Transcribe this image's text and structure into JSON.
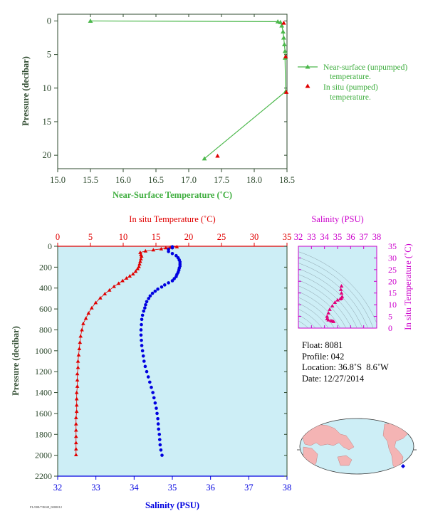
{
  "top_chart": {
    "xlabel": "Near-Surface Temperature (˚C)",
    "ylabel": "Pressure (decibar)",
    "x_ticks": [
      "15.0",
      "15.5",
      "16.0",
      "16.5",
      "17.0",
      "17.5",
      "18.0",
      "18.5"
    ],
    "y_ticks": [
      "0",
      "5",
      "10",
      "15",
      "20"
    ],
    "legend": {
      "near_surface_line1": "Near-surface (unpumped)",
      "near_surface_line2": "temperature.",
      "in_situ_line1": "In situ (pumped)",
      "in_situ_line2": "temperature."
    }
  },
  "bottom_chart": {
    "top_axis_label": "In situ Temperature (˚C)",
    "bottom_axis_label": "Salinity (PSU)",
    "ylabel": "Pressure (decibar)",
    "temp_ticks": [
      "0",
      "5",
      "10",
      "15",
      "20",
      "25",
      "30",
      "35"
    ],
    "sal_ticks": [
      "32",
      "33",
      "34",
      "35",
      "36",
      "37",
      "38"
    ],
    "y_ticks": [
      "0",
      "200",
      "400",
      "600",
      "800",
      "1000",
      "1200",
      "1400",
      "1600",
      "1800",
      "2000",
      "2200"
    ],
    "footer_code": "FL/008/7/8048_0000012"
  },
  "ts_chart": {
    "title": "Salinity (PSU)",
    "x_ticks": [
      "32",
      "33",
      "34",
      "35",
      "36",
      "37",
      "38"
    ],
    "y_ticks": [
      "0",
      "5",
      "10",
      "15",
      "20",
      "25",
      "30",
      "35"
    ],
    "ylabel": "In situ Temperature (˚C)"
  },
  "info": {
    "float_label": "Float:",
    "float_value": "8081",
    "profile_label": "Profile:",
    "profile_value": "042",
    "location_label": "Location:",
    "location_value": "36.8˚S  8.6˚W",
    "date_label": "Date:",
    "date_value": "12/27/2014"
  },
  "colors": {
    "near_surface": "#4cb84c",
    "in_situ_red": "#e00000",
    "salinity_blue": "#0000e0",
    "ts_magenta": "#e0007a",
    "plot_bg": "#cdeef6",
    "axis_green": "#2e4a2e",
    "axis_magenta": "#cc00cc",
    "land": "#f4b4b4"
  },
  "chart_data": [
    {
      "type": "line",
      "title": "",
      "xlabel": "Near-Surface Temperature (˚C)",
      "ylabel": "Pressure (decibar)",
      "xlim": [
        15.0,
        18.5
      ],
      "ylim": [
        22,
        -1
      ],
      "series": [
        {
          "name": "Near-surface (unpumped) temperature.",
          "points": [
            [
              15.5,
              0.0
            ],
            [
              18.36,
              0.1
            ],
            [
              18.4,
              0.2
            ],
            [
              18.42,
              0.7
            ],
            [
              18.44,
              1.6
            ],
            [
              18.45,
              2.5
            ],
            [
              18.46,
              3.5
            ],
            [
              18.47,
              4.5
            ],
            [
              18.47,
              5.5
            ],
            [
              18.48,
              10.5
            ],
            [
              17.24,
              20.5
            ]
          ]
        },
        {
          "name": "In situ (pumped) temperature.",
          "points": [
            [
              18.45,
              0.3
            ],
            [
              18.48,
              5.3
            ],
            [
              18.49,
              10.6
            ],
            [
              17.44,
              20.1
            ]
          ]
        }
      ]
    },
    {
      "type": "line",
      "xlabel": "Salinity (PSU)",
      "x2label": "In situ Temperature (˚C)",
      "ylabel": "Pressure (decibar)",
      "ylim": [
        2200,
        0
      ],
      "temperature_xlim": [
        0,
        35
      ],
      "salinity_xlim": [
        32,
        38
      ],
      "series": [
        {
          "name": "In situ Temperature (˚C)",
          "axis": "temperature",
          "points": [
            [
              18.2,
              5
            ],
            [
              17.2,
              10
            ],
            [
              16.5,
              15
            ],
            [
              15.8,
              25
            ],
            [
              14.6,
              35
            ],
            [
              13.4,
              45
            ],
            [
              12.6,
              60
            ],
            [
              12.7,
              80
            ],
            [
              12.8,
              95
            ],
            [
              12.7,
              120
            ],
            [
              12.6,
              145
            ],
            [
              12.5,
              170
            ],
            [
              12.4,
              195
            ],
            [
              12.2,
              215
            ],
            [
              11.9,
              240
            ],
            [
              11.5,
              265
            ],
            [
              11.0,
              285
            ],
            [
              10.5,
              305
            ],
            [
              9.9,
              330
            ],
            [
              9.3,
              355
            ],
            [
              8.6,
              385
            ],
            [
              7.9,
              420
            ],
            [
              7.2,
              455
            ],
            [
              6.5,
              495
            ],
            [
              5.8,
              540
            ],
            [
              5.2,
              590
            ],
            [
              4.7,
              640
            ],
            [
              4.3,
              690
            ],
            [
              3.9,
              740
            ],
            [
              3.7,
              800
            ],
            [
              3.5,
              860
            ],
            [
              3.4,
              920
            ],
            [
              3.3,
              980
            ],
            [
              3.2,
              1040
            ],
            [
              3.1,
              1100
            ],
            [
              3.1,
              1160
            ],
            [
              3.0,
              1220
            ],
            [
              3.0,
              1280
            ],
            [
              3.0,
              1340
            ],
            [
              2.9,
              1400
            ],
            [
              2.9,
              1460
            ],
            [
              2.9,
              1520
            ],
            [
              2.9,
              1580
            ],
            [
              2.8,
              1640
            ],
            [
              2.8,
              1700
            ],
            [
              2.8,
              1760
            ],
            [
              2.8,
              1820
            ],
            [
              2.8,
              1880
            ],
            [
              2.8,
              1940
            ],
            [
              2.8,
              1995
            ]
          ]
        },
        {
          "name": "Salinity (PSU)",
          "axis": "salinity",
          "points": [
            [
              35.0,
              5
            ],
            [
              35.0,
              15
            ],
            [
              34.9,
              30
            ],
            [
              34.9,
              50
            ],
            [
              35.0,
              70
            ],
            [
              35.1,
              90
            ],
            [
              35.15,
              110
            ],
            [
              35.18,
              130
            ],
            [
              35.2,
              150
            ],
            [
              35.2,
              170
            ],
            [
              35.2,
              190
            ],
            [
              35.18,
              210
            ],
            [
              35.17,
              230
            ],
            [
              35.15,
              250
            ],
            [
              35.12,
              270
            ],
            [
              35.1,
              290
            ],
            [
              35.05,
              310
            ],
            [
              35.0,
              330
            ],
            [
              34.9,
              350
            ],
            [
              34.8,
              370
            ],
            [
              34.72,
              390
            ],
            [
              34.62,
              410
            ],
            [
              34.55,
              430
            ],
            [
              34.48,
              450
            ],
            [
              34.42,
              475
            ],
            [
              34.38,
              500
            ],
            [
              34.33,
              530
            ],
            [
              34.3,
              560
            ],
            [
              34.28,
              590
            ],
            [
              34.25,
              620
            ],
            [
              34.22,
              660
            ],
            [
              34.2,
              700
            ],
            [
              34.19,
              750
            ],
            [
              34.18,
              800
            ],
            [
              34.18,
              850
            ],
            [
              34.19,
              900
            ],
            [
              34.2,
              950
            ],
            [
              34.22,
              1000
            ],
            [
              34.24,
              1050
            ],
            [
              34.26,
              1100
            ],
            [
              34.29,
              1150
            ],
            [
              34.33,
              1200
            ],
            [
              34.37,
              1250
            ],
            [
              34.41,
              1300
            ],
            [
              34.45,
              1350
            ],
            [
              34.49,
              1400
            ],
            [
              34.52,
              1450
            ],
            [
              34.55,
              1500
            ],
            [
              34.58,
              1550
            ],
            [
              34.6,
              1600
            ],
            [
              34.62,
              1650
            ],
            [
              34.63,
              1700
            ],
            [
              34.64,
              1750
            ],
            [
              34.66,
              1800
            ],
            [
              34.67,
              1850
            ],
            [
              34.68,
              1900
            ],
            [
              34.7,
              1950
            ],
            [
              34.73,
              2000
            ]
          ]
        }
      ]
    },
    {
      "type": "scatter",
      "title": "Salinity (PSU)",
      "xlabel": "Salinity (PSU)",
      "ylabel": "In situ Temperature (˚C)",
      "xlim": [
        32,
        38
      ],
      "ylim": [
        0,
        35
      ],
      "points": [
        [
          35.3,
          18
        ],
        [
          35.25,
          16.5
        ],
        [
          35.3,
          15
        ],
        [
          35.35,
          13.5
        ],
        [
          35.3,
          12.8
        ],
        [
          35.2,
          12.5
        ],
        [
          35.0,
          12
        ],
        [
          34.8,
          11
        ],
        [
          34.6,
          9.5
        ],
        [
          34.4,
          8
        ],
        [
          34.3,
          6.5
        ],
        [
          34.2,
          5
        ],
        [
          34.2,
          4
        ],
        [
          34.3,
          3.5
        ],
        [
          34.5,
          3.2
        ],
        [
          34.6,
          3
        ],
        [
          34.7,
          2.8
        ]
      ]
    }
  ]
}
